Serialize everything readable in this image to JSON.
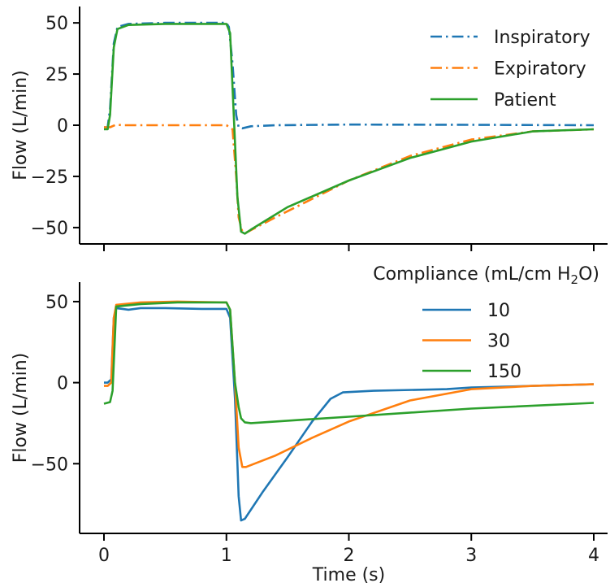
{
  "chart_data": [
    {
      "type": "line",
      "ylabel": "Flow (L/min)",
      "xlabel": "",
      "xlim": [
        0,
        4
      ],
      "ylim": [
        -58,
        58
      ],
      "xticks": [
        0,
        1,
        2,
        3,
        4
      ],
      "yticks": [
        50,
        25,
        0,
        -25,
        -50
      ],
      "show_xtick_labels": false,
      "legend_title": "",
      "legend_position": "top-right",
      "series": [
        {
          "name": "Inspiratory",
          "color": "#1f77b4",
          "dash": "dashdot",
          "x": [
            0,
            0.03,
            0.05,
            0.08,
            0.11,
            0.2,
            0.5,
            0.8,
            1.0,
            1.02,
            1.05,
            1.08,
            1.1,
            1.13,
            1.2,
            1.4,
            2,
            3,
            4
          ],
          "y": [
            -1,
            -1,
            8,
            40,
            48,
            49.5,
            50,
            50,
            50,
            48,
            30,
            5,
            -1,
            -1.5,
            -0.5,
            0,
            0.3,
            0.2,
            0
          ]
        },
        {
          "name": "Expiratory",
          "color": "#ff7f0e",
          "dash": "dashdot",
          "x": [
            0,
            0.05,
            0.1,
            0.15,
            0.5,
            1.0,
            1.05,
            1.08,
            1.1,
            1.13,
            1.16,
            1.4,
            1.7,
            2.0,
            2.5,
            3.0,
            3.5,
            4
          ],
          "y": [
            -1,
            -1,
            0.3,
            0,
            0,
            0,
            -2,
            -25,
            -45,
            -52,
            -52.5,
            -45,
            -36,
            -27,
            -15,
            -7,
            -3,
            -2
          ]
        },
        {
          "name": "Patient",
          "color": "#2ca02c",
          "dash": "solid",
          "x": [
            0,
            0.03,
            0.05,
            0.08,
            0.11,
            0.2,
            0.5,
            0.8,
            1.0,
            1.03,
            1.06,
            1.09,
            1.12,
            1.15,
            1.2,
            1.5,
            2.0,
            2.5,
            3.0,
            3.5,
            4
          ],
          "y": [
            -2,
            -2,
            5,
            38,
            47,
            49,
            49.5,
            49.5,
            49.5,
            45,
            5,
            -35,
            -52,
            -53,
            -51,
            -40,
            -27,
            -16,
            -8,
            -3,
            -2
          ]
        }
      ]
    },
    {
      "type": "line",
      "ylabel": "Flow (L/min)",
      "xlabel": "Time (s)",
      "xlim": [
        0,
        4
      ],
      "ylim": [
        -93,
        62
      ],
      "xticks": [
        0,
        1,
        2,
        3,
        4
      ],
      "yticks": [
        50,
        0,
        -50
      ],
      "show_xtick_labels": true,
      "legend_title": "Compliance (mL/cm H₂O)",
      "legend_position": "top-right",
      "series": [
        {
          "name": "10",
          "color": "#1f77b4",
          "dash": "solid",
          "x": [
            0,
            0.03,
            0.06,
            0.08,
            0.1,
            0.2,
            0.3,
            0.5,
            0.8,
            1.0,
            1.03,
            1.07,
            1.1,
            1.12,
            1.15,
            1.3,
            1.5,
            1.7,
            1.85,
            1.95,
            2.2,
            2.8,
            3.0,
            3.5,
            4
          ],
          "y": [
            0,
            0,
            2,
            40,
            46,
            45,
            46,
            46,
            45.5,
            45.5,
            40,
            -10,
            -70,
            -85,
            -84,
            -67,
            -46,
            -24,
            -10,
            -6,
            -5,
            -4,
            -3,
            -2,
            -1
          ]
        },
        {
          "name": "30",
          "color": "#ff7f0e",
          "dash": "solid",
          "x": [
            0,
            0.03,
            0.06,
            0.08,
            0.1,
            0.3,
            0.6,
            1.0,
            1.03,
            1.07,
            1.1,
            1.13,
            1.16,
            1.4,
            1.7,
            2.0,
            2.5,
            3.0,
            3.5,
            4
          ],
          "y": [
            -2,
            -2,
            0,
            40,
            48,
            49.5,
            50,
            49.5,
            45,
            0,
            -40,
            -52,
            -52,
            -45,
            -34,
            -24,
            -11,
            -4,
            -2,
            -1
          ]
        },
        {
          "name": "150",
          "color": "#2ca02c",
          "dash": "solid",
          "x": [
            0,
            0.05,
            0.07,
            0.1,
            0.3,
            0.6,
            1.0,
            1.03,
            1.07,
            1.1,
            1.12,
            1.15,
            1.2,
            1.4,
            2.0,
            3.0,
            4
          ],
          "y": [
            -13,
            -12,
            -5,
            47,
            48.5,
            49.5,
            49.5,
            45,
            0,
            -15,
            -22,
            -24.5,
            -25,
            -24,
            -21,
            -16,
            -12.5
          ]
        }
      ]
    }
  ]
}
